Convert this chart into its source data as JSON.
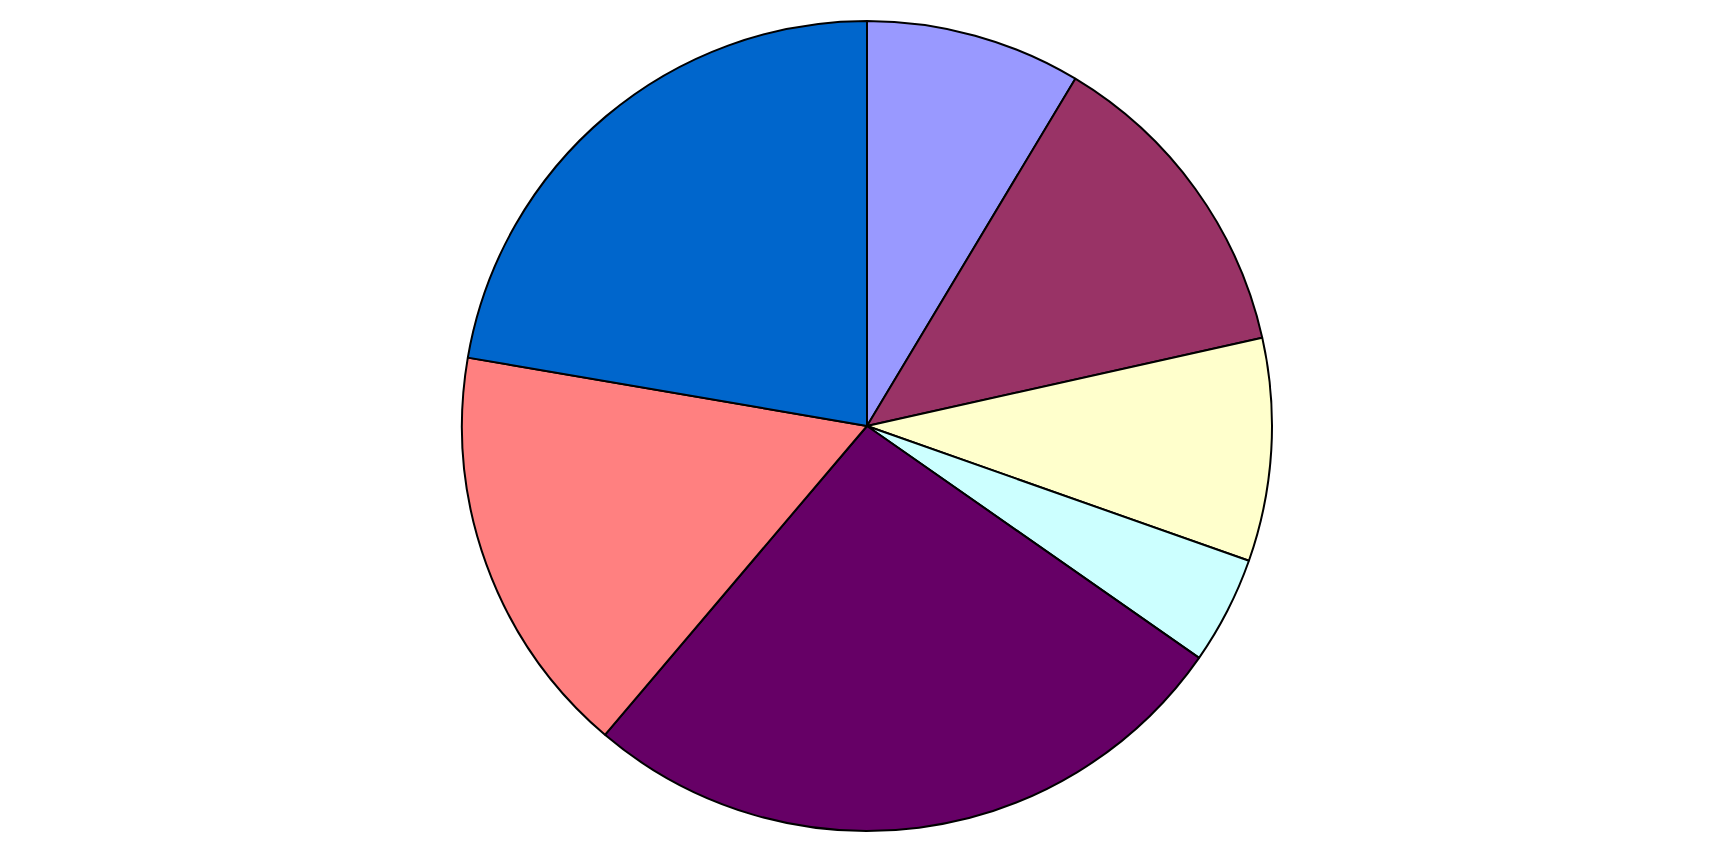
{
  "chart_data": {
    "type": "pie",
    "categories": [
      null,
      null,
      null,
      null,
      null,
      null,
      null
    ],
    "values": [
      8.6,
      12.9,
      8.9,
      4.3,
      26.5,
      16.5,
      22.3
    ],
    "colors": [
      "#9999ff",
      "#993366",
      "#ffffcc",
      "#ccffff",
      "#660066",
      "#ff8080",
      "#0066cc"
    ],
    "legend": false
  }
}
